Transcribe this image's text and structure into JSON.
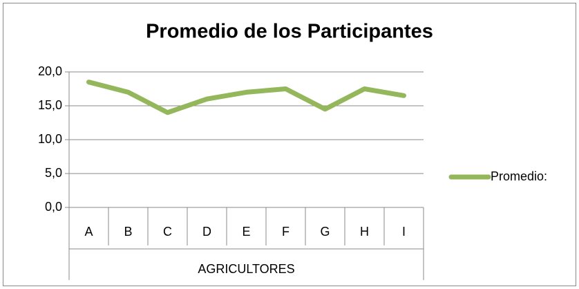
{
  "chart_data": {
    "type": "line",
    "title": "Promedio de los Participantes",
    "categories": [
      "A",
      "B",
      "C",
      "D",
      "E",
      "F",
      "G",
      "H",
      "I"
    ],
    "xlabel": "AGRICULTORES",
    "series": [
      {
        "name": "Promedio:",
        "color": "#93b75a",
        "values": [
          18.5,
          17,
          14,
          16,
          17,
          17.5,
          14.5,
          17.5,
          16.5
        ]
      }
    ],
    "ylim": [
      0,
      20
    ],
    "yticks": [
      {
        "value": 0,
        "label": "0,0"
      },
      {
        "value": 5,
        "label": "5,0"
      },
      {
        "value": 10,
        "label": "10,0"
      },
      {
        "value": 15,
        "label": "15,0"
      },
      {
        "value": 20,
        "label": "20,0"
      }
    ],
    "grid": true,
    "legend": "right"
  }
}
